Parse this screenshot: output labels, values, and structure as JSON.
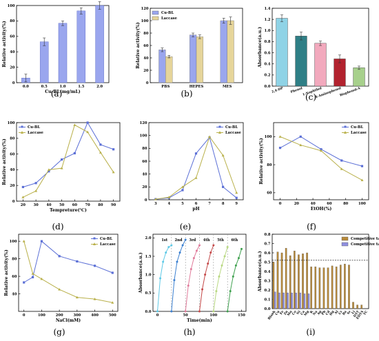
{
  "panel_letters": [
    "(a)",
    "(b)",
    "(c)",
    "(d)",
    "(e)",
    "(f)",
    "(g)",
    "(h)",
    "(i)"
  ],
  "colors": {
    "cubl": "#5b6fd6",
    "laccase": "#b9b04a",
    "bar_a": "#9aa6ee",
    "bar_b_cubl": "#9aa6ee",
    "bar_b_laccase": "#e6d59a",
    "competitive": "#b88a3a",
    "competitive_tc": "#8f8fe0"
  },
  "chart_data": [
    {
      "id": "a",
      "type": "bar",
      "xlabel": "Cu-BL(mg/mL)",
      "ylabel": "Relative activity(%)",
      "categories": [
        "0.0",
        "0.5",
        "1.0",
        "1.5",
        "2.0"
      ],
      "values": [
        6,
        53,
        77,
        93,
        100
      ],
      "errors": [
        5,
        5,
        3,
        4,
        5
      ],
      "ylim": [
        0,
        100
      ],
      "yticks": [
        "0",
        "20",
        "40",
        "60",
        "80",
        "100"
      ]
    },
    {
      "id": "b",
      "type": "bar",
      "ylabel": "Relative activity(%)",
      "categories": [
        "PBS",
        "HEPES",
        "MES"
      ],
      "series": [
        {
          "name": "Cu-BL",
          "values": [
            53,
            77,
            100
          ]
        },
        {
          "name": "Laccase",
          "values": [
            42,
            74,
            100
          ]
        }
      ],
      "errors": [
        [
          3,
          3,
          4
        ],
        [
          2,
          3,
          6
        ]
      ],
      "ylim": [
        0,
        120
      ],
      "yticks": [
        "0",
        "20",
        "40",
        "60",
        "80",
        "100",
        "120"
      ],
      "legend": "top-left"
    },
    {
      "id": "c",
      "type": "bar",
      "ylabel": "Absorbance(a.u.)",
      "categories": [
        "2,4-DP",
        "Phenol",
        "1-Naphthol",
        "4-Aminophenol",
        "Bisphenol-A"
      ],
      "values": [
        1.22,
        0.9,
        0.77,
        0.49,
        0.33
      ],
      "errors": [
        0.06,
        0.07,
        0.04,
        0.07,
        0.03
      ],
      "bar_colors": [
        "#8fd3e6",
        "#2f7f86",
        "#f2a9bd",
        "#b2222e",
        "#a7d08c"
      ],
      "ylim": [
        0,
        1.4
      ],
      "yticks": [
        "0.0",
        "0.2",
        "0.4",
        "0.6",
        "0.8",
        "1.0",
        "1.2",
        "1.4"
      ]
    },
    {
      "id": "d",
      "type": "line",
      "xlabel": "Tempreture(℃)",
      "ylabel": "Relative activity(%)",
      "x": [
        20,
        30,
        40,
        50,
        60,
        70,
        80,
        90
      ],
      "series": [
        {
          "name": "Cu-BL",
          "values": [
            18,
            23,
            38,
            53,
            61,
            100,
            72,
            66
          ]
        },
        {
          "name": "Laccase",
          "values": [
            5,
            13,
            40,
            42,
            97,
            88,
            62,
            37
          ]
        }
      ],
      "xlim": [
        15,
        95
      ],
      "ylim": [
        0,
        100
      ],
      "xticks": [
        "20",
        "30",
        "40",
        "50",
        "60",
        "70",
        "80",
        "90"
      ],
      "yticks": [
        "0",
        "20",
        "40",
        "60",
        "80",
        "100"
      ],
      "legend": "top-left"
    },
    {
      "id": "e",
      "type": "line",
      "xlabel": "pH",
      "x": [
        3,
        4,
        5,
        6,
        7,
        8,
        9
      ],
      "series": [
        {
          "name": "Cu-BL",
          "values": [
            1,
            3,
            15,
            72,
            97,
            20,
            3
          ]
        },
        {
          "name": "Laccase",
          "values": [
            1,
            4,
            20,
            34,
            98,
            69,
            11
          ]
        }
      ],
      "xlim": [
        2.5,
        9.5
      ],
      "ylim": [
        0,
        120
      ],
      "xticks": [
        "3",
        "4",
        "5",
        "6",
        "7",
        "8",
        "9"
      ],
      "yticks": [
        "0",
        "20",
        "40",
        "60",
        "80",
        "100",
        "120"
      ],
      "legend": "top-right"
    },
    {
      "id": "f",
      "type": "line",
      "xlabel": "EtOH(%)",
      "ylabel": "Relative activity(%)",
      "x": [
        0,
        25,
        50,
        75,
        100
      ],
      "series": [
        {
          "name": "Cu-BL",
          "values": [
            92,
            100,
            91,
            83,
            79
          ]
        },
        {
          "name": "Laccase",
          "values": [
            100,
            94,
            90,
            77,
            69
          ]
        }
      ],
      "xlim": [
        -8,
        108
      ],
      "ylim": [
        55,
        110
      ],
      "xticks": [
        "0",
        "20",
        "40",
        "60",
        "80",
        "100"
      ],
      "yticks": [
        "60",
        "80",
        "100"
      ],
      "legend": "top-right"
    },
    {
      "id": "g",
      "type": "line",
      "xlabel": "NaCl(mM)",
      "ylabel": "Relative activity(%)",
      "x": [
        0,
        50,
        100,
        200,
        300,
        400,
        500
      ],
      "series": [
        {
          "name": "Cu-BL",
          "values": [
            53,
            59,
            100,
            83,
            77,
            72,
            64
          ]
        },
        {
          "name": "Laccase",
          "values": [
            100,
            63,
            57,
            45,
            36,
            34,
            30
          ]
        }
      ],
      "xlim": [
        -30,
        530
      ],
      "ylim": [
        20,
        108
      ],
      "xticks": [
        "0",
        "100",
        "200",
        "300",
        "400",
        "500"
      ],
      "yticks": [
        "40",
        "60",
        "80",
        "100"
      ],
      "legend": "top-right"
    },
    {
      "id": "h",
      "type": "line",
      "xlabel": "Time(min)",
      "ylabel": "Absorbance(a.u.)",
      "cycles": [
        "1st",
        "2nd",
        "3rd",
        "4th",
        "5th",
        "6th"
      ],
      "series": [
        {
          "name": "1st",
          "x": [
            0,
            5,
            10,
            15,
            20,
            25
          ],
          "values": [
            0.0,
            0.9,
            1.35,
            1.6,
            1.75,
            1.8
          ]
        },
        {
          "name": "2nd",
          "x": [
            25,
            30,
            35,
            40,
            45,
            50
          ],
          "values": [
            0.0,
            0.85,
            1.35,
            1.6,
            1.8,
            1.95
          ]
        },
        {
          "name": "3rd",
          "x": [
            50,
            55,
            60,
            65,
            70,
            75
          ],
          "values": [
            0.0,
            0.7,
            1.15,
            1.45,
            1.65,
            1.8
          ]
        },
        {
          "name": "4th",
          "x": [
            75,
            80,
            85,
            90,
            95,
            100
          ],
          "values": [
            0.0,
            0.6,
            1.0,
            1.3,
            1.6,
            1.8
          ]
        },
        {
          "name": "5th",
          "x": [
            100,
            105,
            110,
            115,
            120,
            125
          ],
          "values": [
            0.0,
            0.55,
            0.95,
            1.25,
            1.5,
            1.75
          ]
        },
        {
          "name": "6th",
          "x": [
            125,
            130,
            135,
            140,
            145,
            150
          ],
          "values": [
            0.0,
            0.55,
            0.95,
            1.25,
            1.45,
            1.7
          ]
        }
      ],
      "series_colors": [
        "#5ec9e6",
        "#3a7fd0",
        "#e07a9a",
        "#c44848",
        "#b8d880",
        "#3ea04e"
      ],
      "dividers": [
        25,
        50,
        75,
        100,
        125
      ],
      "xlim": [
        -8,
        158
      ],
      "ylim": [
        0,
        2.1
      ],
      "xticks": [
        "0",
        "50",
        "100",
        "150"
      ],
      "yticks": [
        "0.0",
        "0.5",
        "1.0",
        "1.5",
        "2.0"
      ]
    },
    {
      "id": "i",
      "type": "bar",
      "ylabel": "Absorbance(a.u.)",
      "categories": [
        "Blank",
        "Cu",
        "Fe",
        "Zn",
        "Mn",
        "Co",
        "Ni",
        "Ca",
        "Mg",
        "K",
        "Na",
        "Ag",
        "Pb",
        "Cd",
        "Hg",
        "Al",
        "Cr",
        "Ba",
        "Sr",
        "Li",
        "DTT",
        "EDTA",
        "TC"
      ],
      "series": [
        {
          "name": "Competitive targets",
          "values": [
            0.5,
            0.61,
            0.6,
            0.65,
            0.57,
            0.62,
            0.58,
            0.59,
            0.6,
            0.45,
            0.45,
            0.44,
            0.44,
            0.44,
            0.46,
            0.45,
            0.47,
            0.48,
            0.47,
            0.07,
            0.04,
            0.04,
            0.0
          ]
        },
        {
          "name": "Competitive targets+TC",
          "values": [
            0.18,
            0.17,
            0.17,
            0.17,
            0.17,
            0.17,
            0.17,
            0.16,
            0.16,
            0,
            0,
            0,
            0,
            0,
            0,
            0,
            0,
            0,
            0,
            0,
            0,
            0,
            0
          ]
        }
      ],
      "reference_line": 0.52,
      "ylim": [
        0,
        0.8
      ],
      "yticks": [
        "0.0",
        "0.1",
        "0.2",
        "0.3",
        "0.4",
        "0.5",
        "0.6",
        "0.7",
        "0.8"
      ],
      "legend": "top-right"
    }
  ]
}
